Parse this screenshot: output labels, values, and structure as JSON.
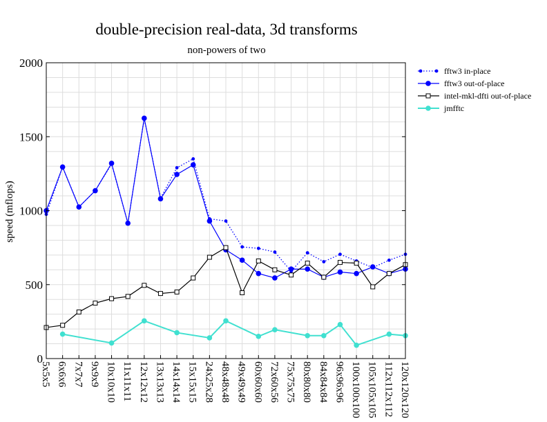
{
  "chart_data": {
    "type": "line",
    "title": "double-precision real-data, 3d transforms",
    "subtitle": "non-powers of two",
    "xlabel": "",
    "ylabel": "speed (mflops)",
    "ylim": [
      0,
      2000
    ],
    "yticks": [
      0,
      500,
      1000,
      1500,
      2000
    ],
    "grid": true,
    "legend_position": "right",
    "categories": [
      "5x5x5",
      "6x6x6",
      "7x7x7",
      "9x9x9",
      "10x10x10",
      "11x11x11",
      "12x12x12",
      "13x13x13",
      "14x14x14",
      "15x15x15",
      "24x25x28",
      "48x48x48",
      "49x49x49",
      "60x60x60",
      "72x60x56",
      "75x75x75",
      "80x80x80",
      "84x84x84",
      "96x96x96",
      "100x100x100",
      "105x105x105",
      "112x112x112",
      "120x120x120"
    ],
    "series": [
      {
        "name": "fftw3 in-place",
        "color": "#0000ff",
        "line": "dotted",
        "marker": "small-dot",
        "values": [
          975,
          1295,
          1025,
          1135,
          1315,
          915,
          1625,
          1085,
          1290,
          1350,
          945,
          930,
          755,
          745,
          720,
          590,
          715,
          655,
          705,
          660,
          615,
          665,
          705
        ]
      },
      {
        "name": "fftw3 out-of-place",
        "color": "#0000ff",
        "line": "solid",
        "marker": "circle",
        "values": [
          1000,
          1295,
          1025,
          1135,
          1320,
          915,
          1625,
          1080,
          1245,
          1310,
          930,
          735,
          665,
          575,
          545,
          605,
          605,
          550,
          585,
          575,
          620,
          575,
          605
        ]
      },
      {
        "name": "intel-mkl-dfti out-of-place",
        "color": "#000000",
        "line": "solid",
        "marker": "square",
        "values": [
          210,
          225,
          315,
          375,
          405,
          420,
          495,
          440,
          450,
          545,
          685,
          750,
          445,
          660,
          600,
          565,
          645,
          550,
          650,
          645,
          485,
          575,
          635
        ]
      },
      {
        "name": "jmfftc",
        "color": "#40e0d0",
        "line": "solid",
        "marker": "circle",
        "values": [
          null,
          165,
          null,
          null,
          105,
          null,
          255,
          null,
          175,
          null,
          140,
          255,
          null,
          150,
          195,
          null,
          155,
          155,
          230,
          90,
          null,
          165,
          155
        ]
      }
    ]
  }
}
